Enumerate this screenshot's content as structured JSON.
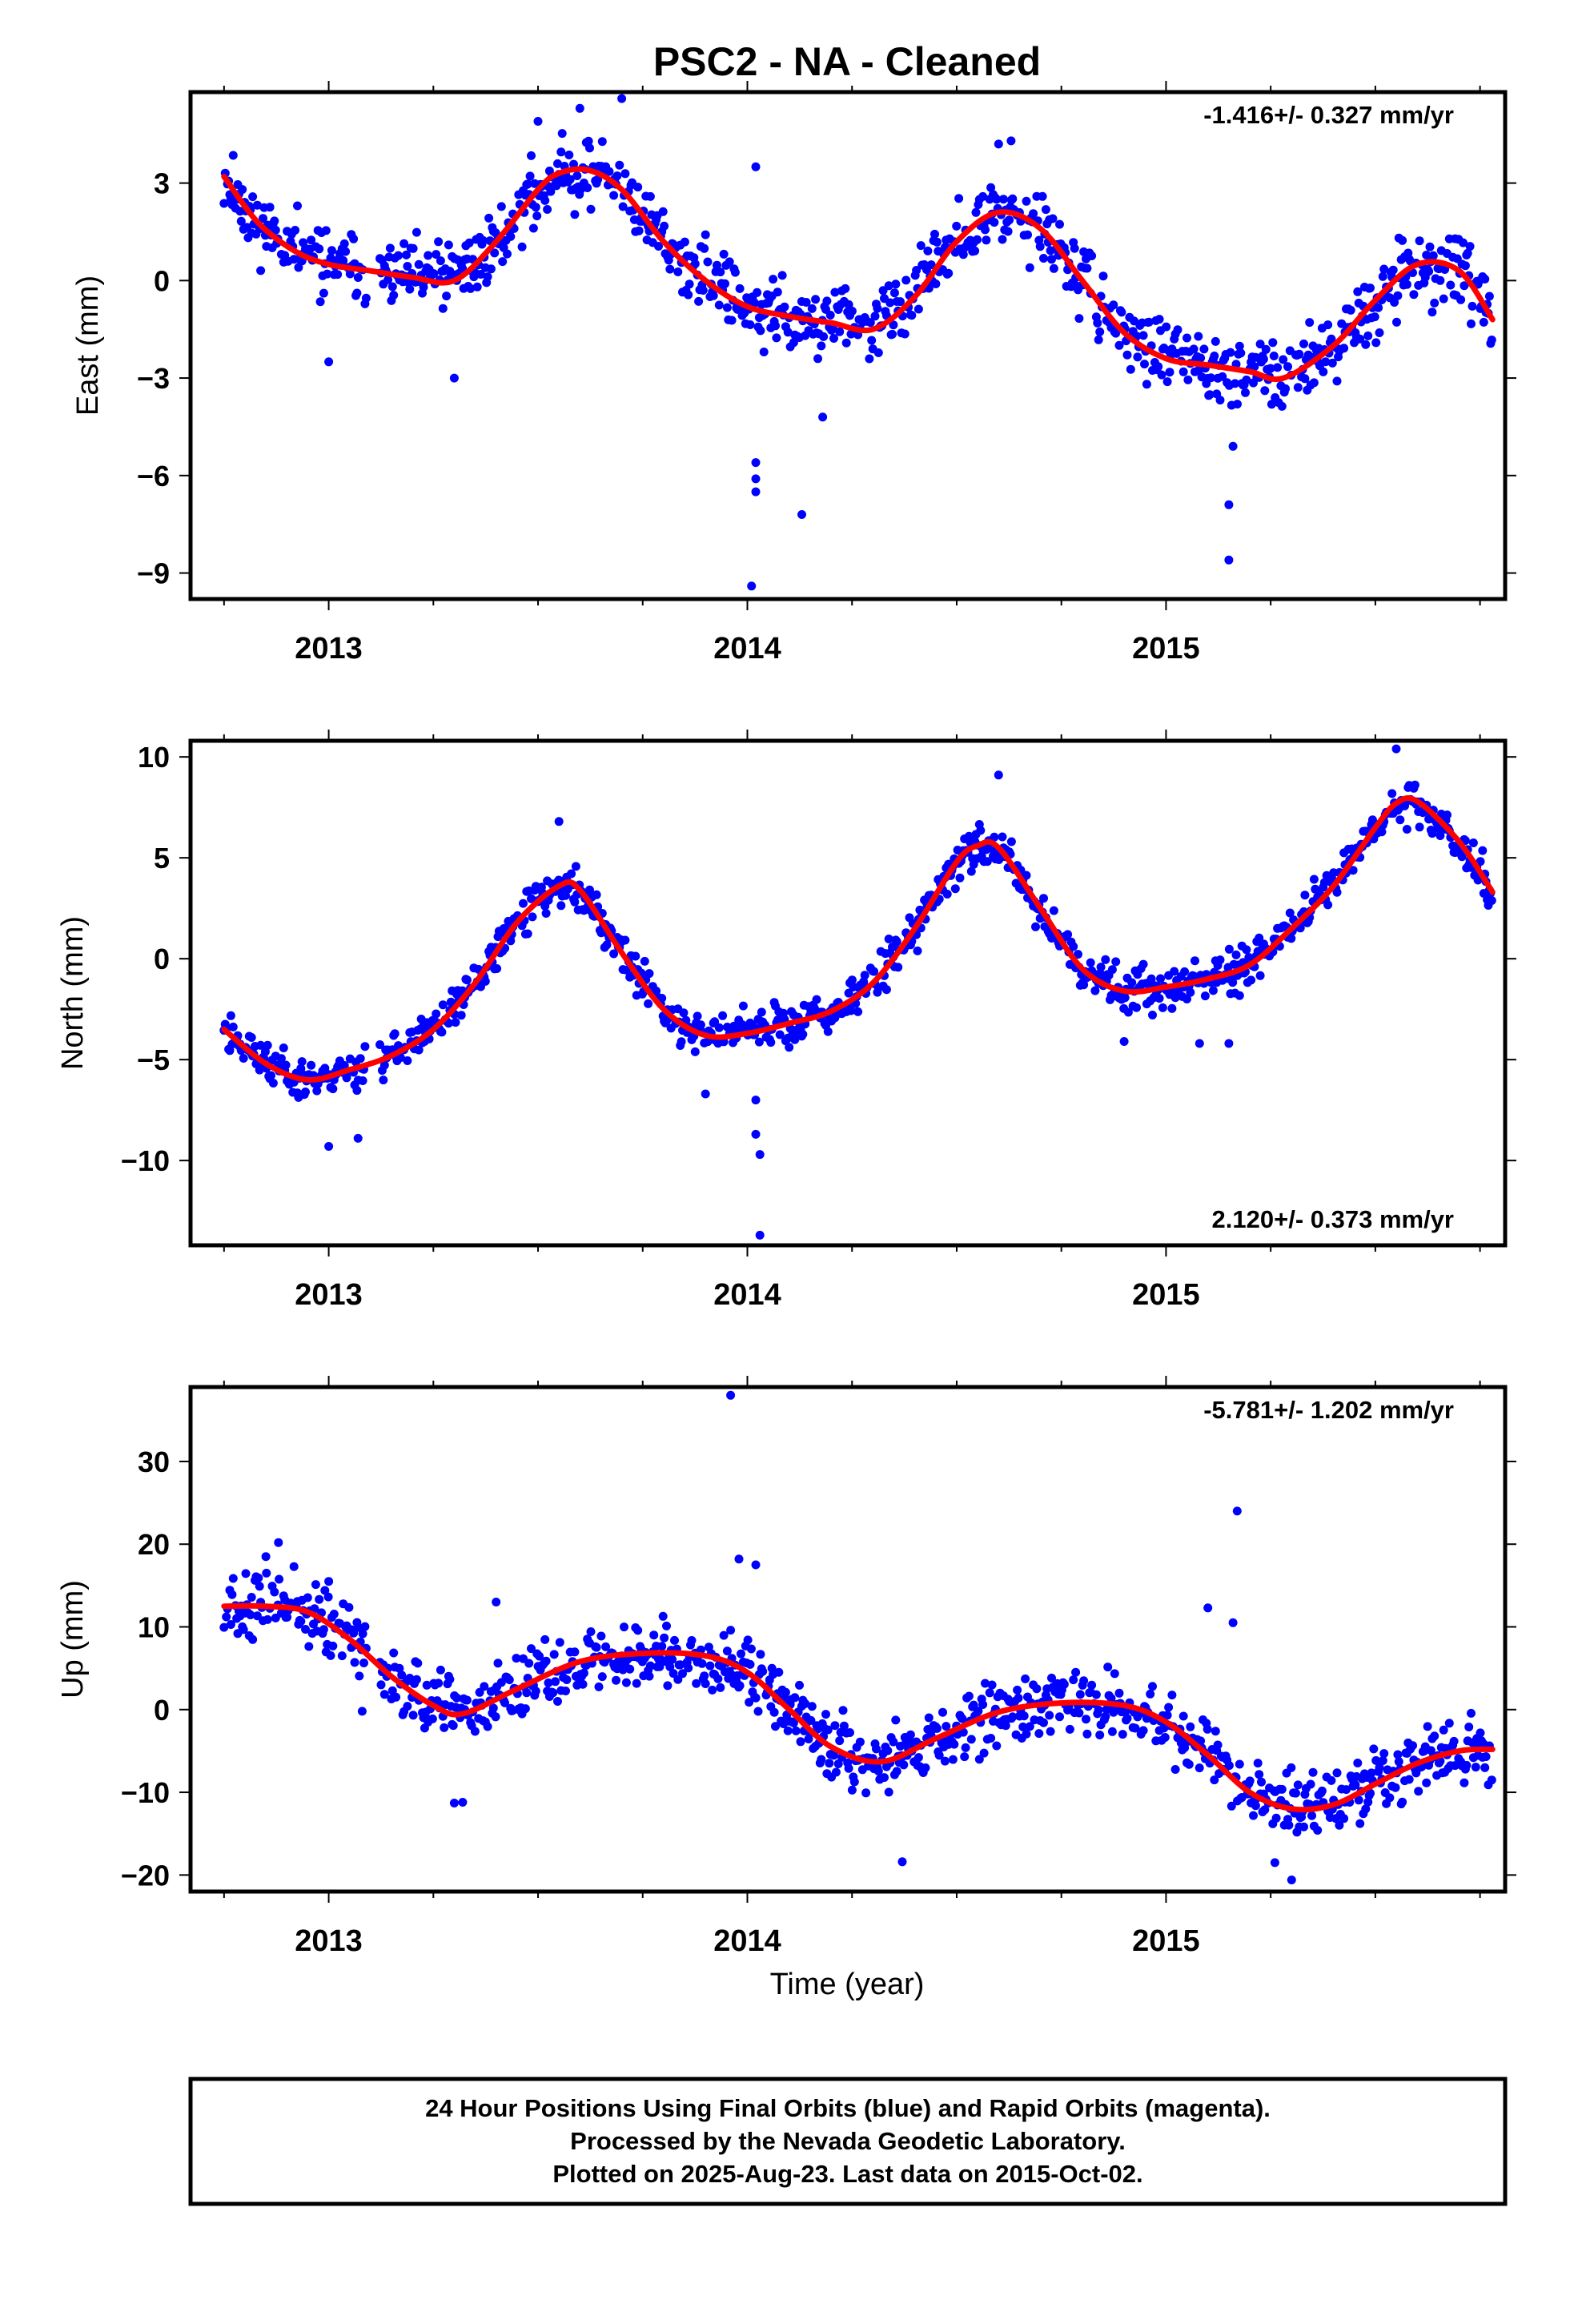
{
  "chart_data": {
    "type": "scatter",
    "title": "PSC2  - NA - Cleaned",
    "x_tick_labels": [
      "2013",
      "2014",
      "2015"
    ],
    "xlabel": "Time (year)",
    "point_color": "#0000ff",
    "fit_color": "#ff0000",
    "xlim": [
      2012.67,
      2015.81
    ],
    "panels": [
      {
        "name": "east",
        "ylabel": "East (mm)",
        "ylim": [
          -9.8,
          5.8
        ],
        "y_ticks": [
          3,
          0,
          -3,
          -6,
          -9
        ],
        "y_tick_labels": [
          "3",
          "0",
          "−3",
          "−6",
          "−9"
        ],
        "rate_label": "-1.416+/- 0.327 mm/yr",
        "rate_position": "top-right",
        "scatter": 0.9,
        "seed": 11,
        "fit": {
          "x": [
            2012.75,
            2012.83,
            2012.92,
            2013.0,
            2013.1,
            2013.2,
            2013.3,
            2013.4,
            2013.5,
            2013.55,
            2013.62,
            2013.7,
            2013.8,
            2013.9,
            2014.0,
            2014.1,
            2014.2,
            2014.3,
            2014.4,
            2014.5,
            2014.6,
            2014.7,
            2014.8,
            2014.9,
            2015.0,
            2015.1,
            2015.2,
            2015.28,
            2015.4,
            2015.5,
            2015.6,
            2015.7,
            2015.78
          ],
          "y": [
            3.2,
            1.8,
            0.9,
            0.5,
            0.3,
            0.1,
            0.0,
            1.2,
            2.8,
            3.3,
            3.4,
            2.8,
            1.2,
            0.0,
            -0.8,
            -1.1,
            -1.3,
            -1.5,
            -0.5,
            1.2,
            2.1,
            1.6,
            0.0,
            -1.6,
            -2.4,
            -2.6,
            -2.8,
            -3.0,
            -2.0,
            -0.6,
            0.5,
            0.3,
            -1.2
          ]
        },
        "outliers": [
          [
            2014.02,
            3.5
          ],
          [
            2014.02,
            -5.6
          ],
          [
            2014.02,
            -6.1
          ],
          [
            2014.02,
            -6.5
          ],
          [
            2014.01,
            -9.4
          ],
          [
            2014.13,
            -7.2
          ],
          [
            2015.15,
            -6.9
          ],
          [
            2015.15,
            -8.6
          ],
          [
            2013.0,
            -2.5
          ],
          [
            2013.6,
            5.3
          ],
          [
            2013.7,
            5.6
          ],
          [
            2013.5,
            4.9
          ],
          [
            2014.6,
            4.2
          ],
          [
            2014.63,
            4.3
          ],
          [
            2013.3,
            -3.0
          ],
          [
            2015.16,
            -5.1
          ],
          [
            2014.18,
            -4.2
          ]
        ]
      },
      {
        "name": "north",
        "ylabel": "North (mm)",
        "ylim": [
          -14.2,
          10.8
        ],
        "y_ticks": [
          10,
          5,
          0,
          -5,
          -10
        ],
        "y_tick_labels": [
          "10",
          "5",
          "0",
          "−5",
          "−10"
        ],
        "rate_label": "2.120+/- 0.373 mm/yr",
        "rate_position": "bottom-right",
        "scatter": 0.9,
        "seed": 23,
        "fit": {
          "x": [
            2012.75,
            2012.85,
            2012.95,
            2013.05,
            2013.15,
            2013.25,
            2013.35,
            2013.45,
            2013.55,
            2013.6,
            2013.7,
            2013.8,
            2013.9,
            2014.0,
            2014.1,
            2014.2,
            2014.3,
            2014.4,
            2014.5,
            2014.55,
            2014.6,
            2014.7,
            2014.8,
            2014.9,
            2015.0,
            2015.1,
            2015.2,
            2015.3,
            2015.4,
            2015.5,
            2015.55,
            2015.6,
            2015.7,
            2015.78
          ],
          "y": [
            -3.5,
            -5.2,
            -6.0,
            -5.5,
            -4.8,
            -3.5,
            -1.2,
            1.8,
            3.6,
            3.4,
            0.3,
            -2.5,
            -3.8,
            -3.7,
            -3.2,
            -2.6,
            -1.2,
            1.5,
            4.8,
            5.6,
            5.5,
            2.5,
            -0.5,
            -1.6,
            -1.4,
            -1.0,
            -0.3,
            1.5,
            3.6,
            6.5,
            7.7,
            7.8,
            5.8,
            3.3
          ]
        },
        "outliers": [
          [
            2014.02,
            -7.0
          ],
          [
            2014.02,
            -8.7
          ],
          [
            2014.03,
            -9.7
          ],
          [
            2014.03,
            -13.7
          ],
          [
            2013.0,
            -9.3
          ],
          [
            2013.07,
            -8.9
          ],
          [
            2015.55,
            10.4
          ],
          [
            2014.6,
            9.1
          ],
          [
            2013.55,
            6.8
          ],
          [
            2014.9,
            -4.1
          ],
          [
            2015.08,
            -4.2
          ],
          [
            2015.15,
            -4.2
          ],
          [
            2013.9,
            -6.7
          ]
        ]
      },
      {
        "name": "up",
        "ylabel": "Up (mm)",
        "ylim": [
          -22,
          39
        ],
        "y_ticks": [
          30,
          20,
          10,
          0,
          -10,
          -20
        ],
        "y_tick_labels": [
          "30",
          "20",
          "10",
          "0",
          "−10",
          "−20"
        ],
        "rate_label": "-5.781+/- 1.202 mm/yr",
        "rate_position": "top-right",
        "scatter": 3.3,
        "seed": 37,
        "fit": {
          "x": [
            2012.75,
            2012.85,
            2012.95,
            2013.05,
            2013.15,
            2013.25,
            2013.32,
            2013.45,
            2013.6,
            2013.75,
            2013.9,
            2014.0,
            2014.1,
            2014.2,
            2014.32,
            2014.45,
            2014.6,
            2014.75,
            2014.9,
            2015.0,
            2015.1,
            2015.2,
            2015.3,
            2015.4,
            2015.5,
            2015.6,
            2015.7,
            2015.78
          ],
          "y": [
            12.5,
            12.5,
            11.8,
            8.5,
            4.0,
            0.5,
            -0.5,
            2.5,
            5.8,
            6.8,
            6.5,
            4.5,
            0.0,
            -4.5,
            -6.3,
            -3.5,
            -0.3,
            0.8,
            0.5,
            -1.5,
            -5.5,
            -10.0,
            -12.0,
            -11.5,
            -9.0,
            -6.5,
            -5.0,
            -4.8
          ]
        },
        "outliers": [
          [
            2013.96,
            38.0
          ],
          [
            2015.17,
            24.0
          ],
          [
            2015.16,
            10.5
          ],
          [
            2015.1,
            12.3
          ],
          [
            2013.98,
            18.2
          ],
          [
            2014.02,
            17.5
          ],
          [
            2013.4,
            13.0
          ],
          [
            2014.37,
            -18.4
          ],
          [
            2015.3,
            -20.6
          ],
          [
            2015.26,
            -18.5
          ],
          [
            2013.32,
            -11.2
          ],
          [
            2013.3,
            -11.3
          ],
          [
            2013.08,
            -0.2
          ],
          [
            2013.0,
            15.5
          ],
          [
            2012.88,
            20.2
          ],
          [
            2012.85,
            18.5
          ]
        ]
      }
    ]
  },
  "caption": {
    "line1": "24 Hour Positions Using Final Orbits (blue) and Rapid Orbits (magenta).",
    "line2": "Processed by the Nevada Geodetic Laboratory.",
    "line3": "Plotted on 2025-Aug-23. Last data on 2015-Oct-02."
  }
}
